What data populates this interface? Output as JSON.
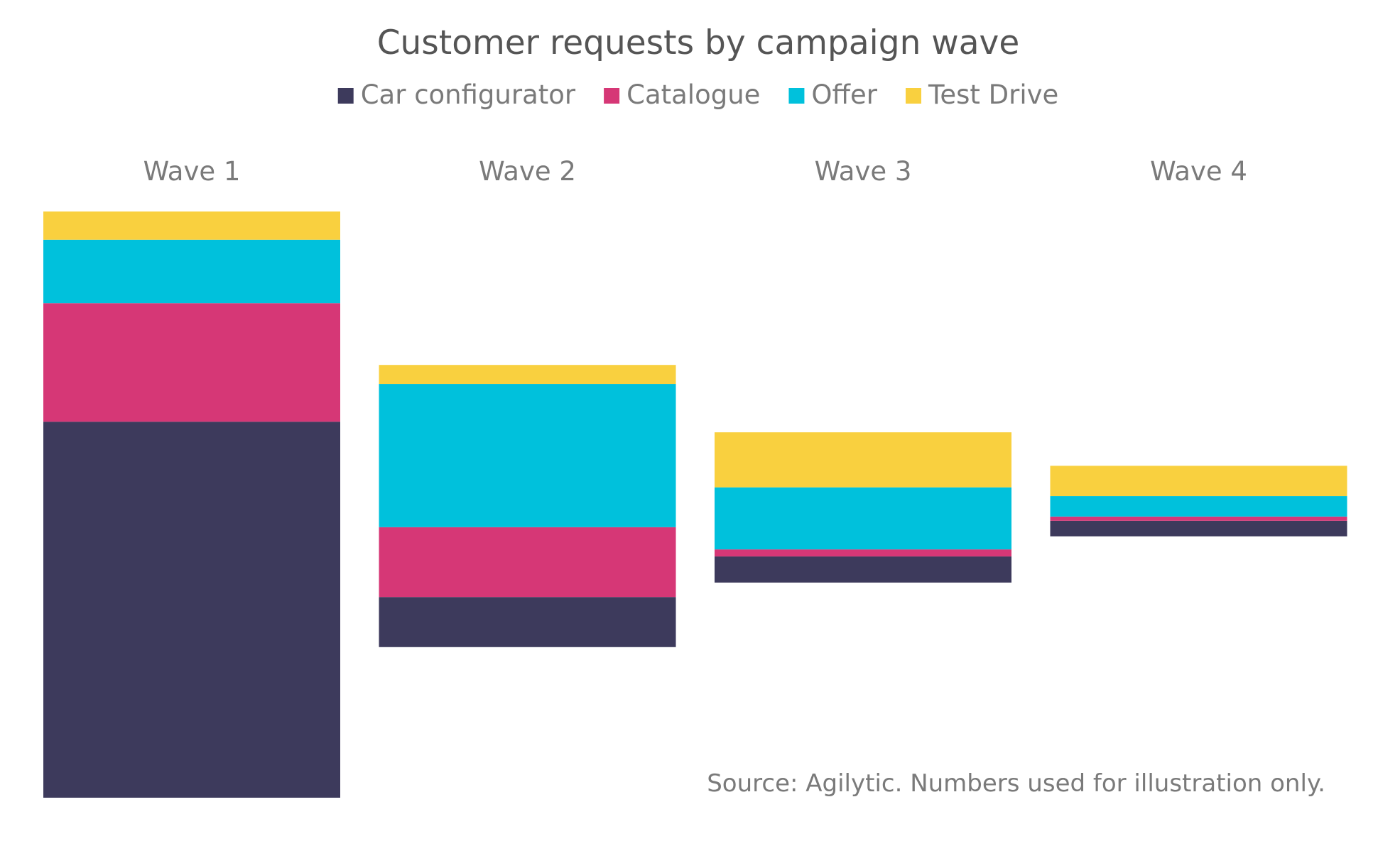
{
  "chart_data": {
    "type": "bar",
    "stacked": true,
    "title": "Customer requests by campaign wave",
    "categories": [
      "Wave 1",
      "Wave 2",
      "Wave 3",
      "Wave 4"
    ],
    "series": [
      {
        "name": "Car configurator",
        "color": "#3d3a5c",
        "values": [
          533,
          71,
          37,
          22
        ]
      },
      {
        "name": "Catalogue",
        "color": "#d63776",
        "values": [
          168,
          99,
          10,
          6
        ]
      },
      {
        "name": "Offer",
        "color": "#00c1dc",
        "values": [
          90,
          203,
          88,
          29
        ]
      },
      {
        "name": "Test Drive",
        "color": "#f9d03f",
        "values": [
          40,
          27,
          78,
          43
        ]
      }
    ],
    "legend_position": "top",
    "grid": false,
    "y_axis_visible": false,
    "source": "Source: Agilytic. Numbers used for illustration only."
  }
}
